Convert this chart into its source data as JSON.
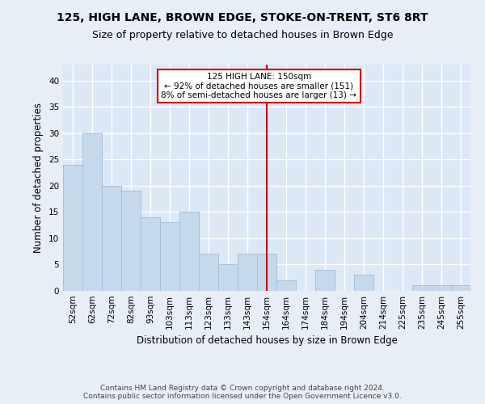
{
  "title1": "125, HIGH LANE, BROWN EDGE, STOKE-ON-TRENT, ST6 8RT",
  "title2": "Size of property relative to detached houses in Brown Edge",
  "xlabel": "Distribution of detached houses by size in Brown Edge",
  "ylabel": "Number of detached properties",
  "categories": [
    "52sqm",
    "62sqm",
    "72sqm",
    "82sqm",
    "93sqm",
    "103sqm",
    "113sqm",
    "123sqm",
    "133sqm",
    "143sqm",
    "154sqm",
    "164sqm",
    "174sqm",
    "184sqm",
    "194sqm",
    "204sqm",
    "214sqm",
    "225sqm",
    "235sqm",
    "245sqm",
    "255sqm"
  ],
  "values": [
    24,
    30,
    20,
    19,
    14,
    13,
    15,
    7,
    5,
    7,
    7,
    2,
    0,
    4,
    0,
    3,
    0,
    0,
    1,
    1,
    1
  ],
  "bar_color": "#c6d9ec",
  "bar_edge_color": "#a8c0d6",
  "bg_color": "#dce8f5",
  "fig_bg_color": "#e8eef6",
  "grid_color": "#ffffff",
  "vline_x_index": 10,
  "vline_color": "#cc0000",
  "annotation_text": "125 HIGH LANE: 150sqm\n← 92% of detached houses are smaller (151)\n8% of semi-detached houses are larger (13) →",
  "annotation_box_color": "#cc0000",
  "ylim": [
    0,
    43
  ],
  "yticks": [
    0,
    5,
    10,
    15,
    20,
    25,
    30,
    35,
    40
  ],
  "footer": "Contains HM Land Registry data © Crown copyright and database right 2024.\nContains public sector information licensed under the Open Government Licence v3.0.",
  "title_fontsize": 10,
  "subtitle_fontsize": 9,
  "axis_label_fontsize": 8.5,
  "tick_fontsize": 7.5
}
